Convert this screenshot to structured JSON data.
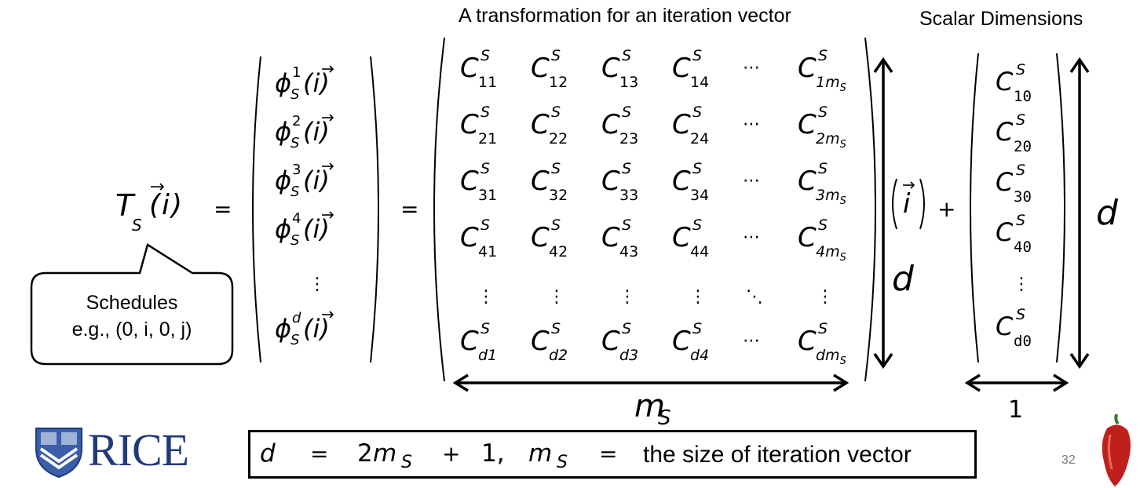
{
  "headers": {
    "transformation": "A transformation for an iteration vector",
    "scalar": "Scalar Dimensions"
  },
  "lhs": {
    "T": "T",
    "T_sub": "S",
    "arg": "(i)"
  },
  "equals": "=",
  "plus": "+",
  "phi": {
    "symbol": "ϕ",
    "sub": "S",
    "arg": "(i)",
    "supers": [
      "1",
      "2",
      "3",
      "4",
      "d"
    ]
  },
  "matrix": {
    "symbol": "C",
    "super": "S",
    "rows": [
      [
        "11",
        "12",
        "13",
        "14",
        "1m"
      ],
      [
        "21",
        "22",
        "23",
        "24",
        "2m"
      ],
      [
        "31",
        "32",
        "33",
        "34",
        "3m"
      ],
      [
        "41",
        "42",
        "43",
        "44",
        "4m"
      ],
      [
        "d1",
        "d2",
        "d3",
        "d4",
        "dm"
      ]
    ],
    "m_sub": "S"
  },
  "iter_vec": "i",
  "scalar_vec": [
    "10",
    "20",
    "30",
    "40",
    "d0"
  ],
  "dim_labels": {
    "d_matrix": "d",
    "d_right": "d",
    "m": "m",
    "m_sub": "S",
    "one": "1"
  },
  "ellipsis": {
    "h": "⋯",
    "v": "⋮",
    "diag": "⋱"
  },
  "callout": {
    "line1": "Schedules",
    "line2": "e.g., (0, i, 0, j)"
  },
  "formula": {
    "d": "d",
    "eq1": "=",
    "two": "2",
    "m": "m",
    "sub": "S",
    "plus": "+",
    "one": "1,",
    "m2": "m",
    "sub2": "S",
    "eq2": "=",
    "desc": "the size of iteration vector"
  },
  "logo": "RICE",
  "page_number": "32"
}
